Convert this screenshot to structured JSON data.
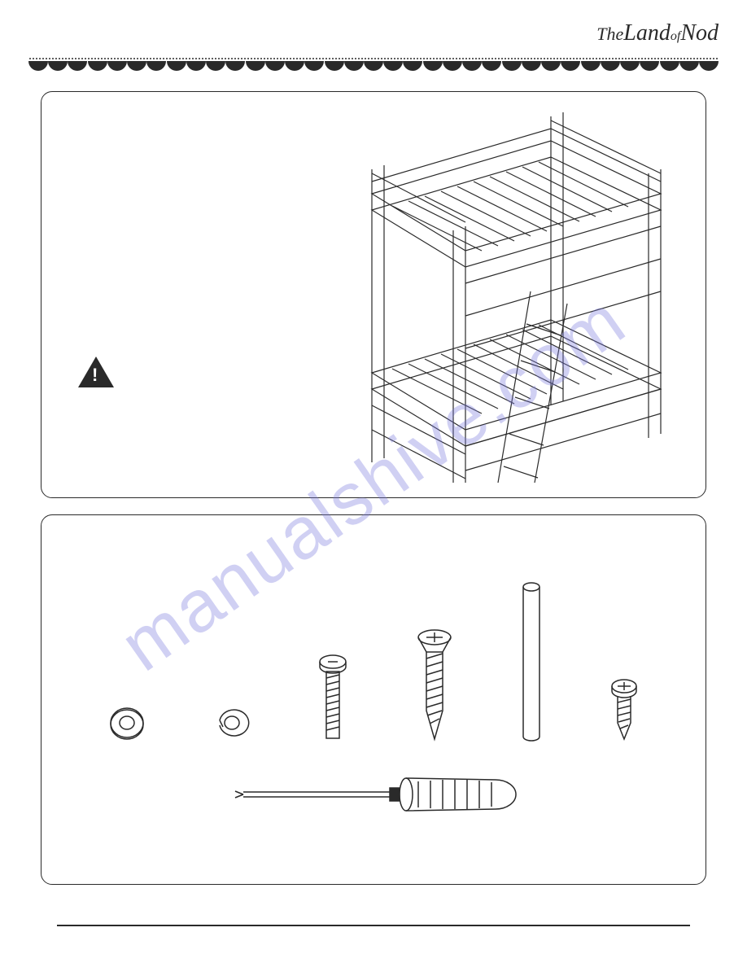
{
  "brand": {
    "text_the": "The",
    "text_land": "Land",
    "text_of": "of",
    "text_nod": "Nod",
    "color": "#2a2a2a",
    "fontsize": 28
  },
  "border": {
    "dot_color": "#2a2a2a",
    "scallop_count": 35,
    "scallop_color": "#2a2a2a"
  },
  "panels": {
    "border_color": "#2a2a2a",
    "border_radius": 14,
    "background": "#ffffff"
  },
  "top_panel": {
    "type": "diagram",
    "warning_icon": {
      "shape": "triangle",
      "fill": "#2a2a2a",
      "symbol": "!",
      "symbol_color": "#ffffff"
    },
    "product": {
      "type": "bunk_bed_isometric",
      "stroke": "#2a2a2a",
      "stroke_width": 1.2,
      "fill": "none",
      "has_ladder": true,
      "has_slats": true,
      "levels": 2
    }
  },
  "bottom_panel": {
    "type": "hardware_list",
    "items": [
      {
        "name": "flat_washer",
        "shape": "ring",
        "stroke": "#2a2a2a"
      },
      {
        "name": "spring_washer",
        "shape": "split_ring",
        "stroke": "#2a2a2a"
      },
      {
        "name": "machine_bolt",
        "shape": "bolt_threaded",
        "head": "slotted_round",
        "stroke": "#2a2a2a"
      },
      {
        "name": "wood_screw",
        "shape": "screw_pointed",
        "head": "phillips_flat",
        "stroke": "#2a2a2a"
      },
      {
        "name": "dowel",
        "shape": "cylinder",
        "stroke": "#2a2a2a"
      },
      {
        "name": "short_screw",
        "shape": "screw_pointed",
        "head": "phillips_pan",
        "stroke": "#2a2a2a"
      }
    ],
    "tool": {
      "name": "phillips_screwdriver",
      "stroke": "#2a2a2a",
      "handle_style": "ribbed"
    }
  },
  "watermark": {
    "text": "manualshive.com",
    "color": "rgba(120, 120, 220, 0.35)",
    "fontsize": 90,
    "rotation": -35
  },
  "footer": {
    "line_color": "#2a2a2a"
  }
}
